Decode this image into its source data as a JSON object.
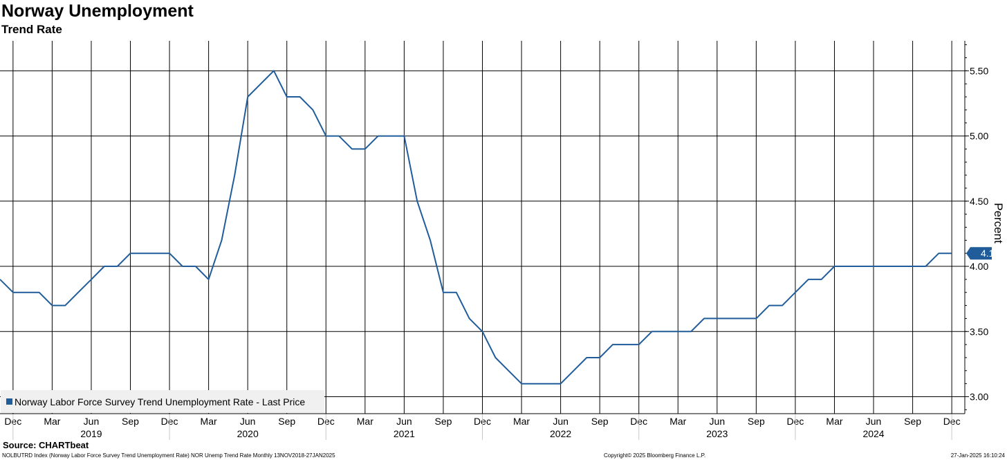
{
  "title": "Norway Unemployment",
  "subtitle": "Trend Rate",
  "source": "Source: CHARTbeat",
  "footer": {
    "left": "NOLBUTRD Index (Norway Labor Force Survey Trend Unemployment Rate) NOR Unemp Trend Rate  Monthly 13NOV2018-27JAN2025",
    "middle": "Copyright© 2025 Bloomberg Finance L.P.",
    "right": "27-Jan-2025 16:10:24"
  },
  "colors": {
    "series": "#1f5c99",
    "grid": "#000000",
    "legend_bg": "#f0f0f0"
  },
  "chart_data": {
    "type": "line",
    "title": "Norway Unemployment",
    "subtitle": "Trend Rate",
    "ylabel": "Percent",
    "y_axis_side": "right",
    "ylim": [
      2.87,
      5.73
    ],
    "yticks": [
      "3.00",
      "3.50",
      "4.00",
      "4.50",
      "5.00",
      "5.50"
    ],
    "xlim": [
      "2018-11",
      "2025-01"
    ],
    "x_month_labels": [
      {
        "month": "2018-12",
        "label": "Dec"
      },
      {
        "month": "2019-03",
        "label": "Mar"
      },
      {
        "month": "2019-06",
        "label": "Jun"
      },
      {
        "month": "2019-09",
        "label": "Sep"
      },
      {
        "month": "2019-12",
        "label": "Dec"
      },
      {
        "month": "2020-03",
        "label": "Mar"
      },
      {
        "month": "2020-06",
        "label": "Jun"
      },
      {
        "month": "2020-09",
        "label": "Sep"
      },
      {
        "month": "2020-12",
        "label": "Dec"
      },
      {
        "month": "2021-03",
        "label": "Mar"
      },
      {
        "month": "2021-06",
        "label": "Jun"
      },
      {
        "month": "2021-09",
        "label": "Sep"
      },
      {
        "month": "2021-12",
        "label": "Dec"
      },
      {
        "month": "2022-03",
        "label": "Mar"
      },
      {
        "month": "2022-06",
        "label": "Jun"
      },
      {
        "month": "2022-09",
        "label": "Sep"
      },
      {
        "month": "2022-12",
        "label": "Dec"
      },
      {
        "month": "2023-03",
        "label": "Mar"
      },
      {
        "month": "2023-06",
        "label": "Jun"
      },
      {
        "month": "2023-09",
        "label": "Sep"
      },
      {
        "month": "2023-12",
        "label": "Dec"
      },
      {
        "month": "2024-03",
        "label": "Mar"
      },
      {
        "month": "2024-06",
        "label": "Jun"
      },
      {
        "month": "2024-09",
        "label": "Sep"
      },
      {
        "month": "2024-12",
        "label": "Dec"
      }
    ],
    "x_year_labels": [
      {
        "month": "2019-06",
        "label": "2019"
      },
      {
        "month": "2020-06",
        "label": "2020"
      },
      {
        "month": "2021-06",
        "label": "2021"
      },
      {
        "month": "2022-06",
        "label": "2022"
      },
      {
        "month": "2023-06",
        "label": "2023"
      },
      {
        "month": "2024-06",
        "label": "2024"
      }
    ],
    "grid": true,
    "legend_position": "bottom-left",
    "last_value_label": "4.10",
    "series": [
      {
        "name": "Norway Labor Force Survey Trend Unemployment Rate - Last Price",
        "months": [
          "2018-11",
          "2018-12",
          "2019-01",
          "2019-02",
          "2019-03",
          "2019-04",
          "2019-05",
          "2019-06",
          "2019-07",
          "2019-08",
          "2019-09",
          "2019-10",
          "2019-11",
          "2019-12",
          "2020-01",
          "2020-02",
          "2020-03",
          "2020-04",
          "2020-05",
          "2020-06",
          "2020-07",
          "2020-08",
          "2020-09",
          "2020-10",
          "2020-11",
          "2020-12",
          "2021-01",
          "2021-02",
          "2021-03",
          "2021-04",
          "2021-05",
          "2021-06",
          "2021-07",
          "2021-08",
          "2021-09",
          "2021-10",
          "2021-11",
          "2021-12",
          "2022-01",
          "2022-02",
          "2022-03",
          "2022-04",
          "2022-05",
          "2022-06",
          "2022-07",
          "2022-08",
          "2022-09",
          "2022-10",
          "2022-11",
          "2022-12",
          "2023-01",
          "2023-02",
          "2023-03",
          "2023-04",
          "2023-05",
          "2023-06",
          "2023-07",
          "2023-08",
          "2023-09",
          "2023-10",
          "2023-11",
          "2023-12",
          "2024-01",
          "2024-02",
          "2024-03",
          "2024-04",
          "2024-05",
          "2024-06",
          "2024-07",
          "2024-08",
          "2024-09",
          "2024-10",
          "2024-11",
          "2024-12"
        ],
        "values": [
          3.9,
          3.8,
          3.8,
          3.8,
          3.7,
          3.7,
          3.8,
          3.9,
          4.0,
          4.0,
          4.1,
          4.1,
          4.1,
          4.1,
          4.0,
          4.0,
          3.9,
          4.2,
          4.7,
          5.3,
          5.4,
          5.5,
          5.3,
          5.3,
          5.2,
          5.0,
          5.0,
          4.9,
          4.9,
          5.0,
          5.0,
          5.0,
          4.5,
          4.2,
          3.8,
          3.8,
          3.6,
          3.5,
          3.3,
          3.2,
          3.1,
          3.1,
          3.1,
          3.1,
          3.2,
          3.3,
          3.3,
          3.4,
          3.4,
          3.4,
          3.5,
          3.5,
          3.5,
          3.5,
          3.6,
          3.6,
          3.6,
          3.6,
          3.6,
          3.7,
          3.7,
          3.8,
          3.9,
          3.9,
          4.0,
          4.0,
          4.0,
          4.0,
          4.0,
          4.0,
          4.0,
          4.0,
          4.1,
          4.1
        ]
      }
    ]
  }
}
